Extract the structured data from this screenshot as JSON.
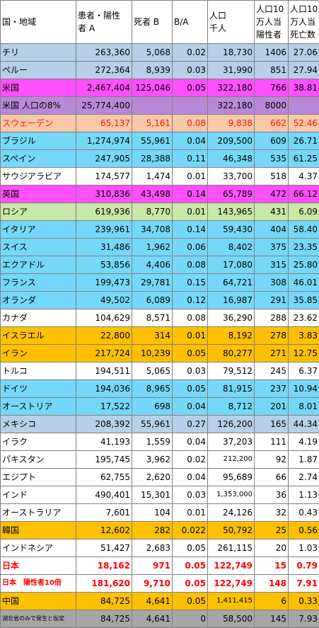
{
  "headers": {
    "country": "国・地域",
    "patients": [
      "患者・陽性",
      "者 A"
    ],
    "deaths": "死者 B",
    "ratio": "B/A",
    "population": [
      "人口",
      "千人"
    ],
    "per100k_pos": [
      "人口10",
      "万人当",
      "陽性者"
    ],
    "per100k_death": [
      "人口10",
      "万人当",
      "死亡数"
    ]
  },
  "rows": [
    {
      "name": "チリ",
      "a": "263,360",
      "b": "5,068",
      "ratio": "0.02",
      "pop": "18,730",
      "pos": "1406",
      "death": "27.06"
    },
    {
      "name": "ペルー",
      "a": "272,364",
      "b": "8,939",
      "ratio": "0.03",
      "pop": "31,990",
      "pos": "851",
      "death": "27.94"
    },
    {
      "name": "米国",
      "a": "2,467,404",
      "b": "125,046",
      "ratio": "0.05",
      "pop": "322,180",
      "pos": "766",
      "death": "38.81"
    },
    {
      "name": "米国 人口の8%",
      "a": "25,774,400",
      "b": "",
      "ratio": "",
      "pop": "322,180",
      "pos": "8000",
      "death": ""
    },
    {
      "name": "スウェーデン",
      "a": "65,137",
      "b": "5,161",
      "ratio": "0.08",
      "pop": "9,838",
      "pos": "662",
      "death": "52.46"
    },
    {
      "name": "ブラジル",
      "a": "1,274,974",
      "b": "55,961",
      "ratio": "0.04",
      "pop": "209,500",
      "pos": "609",
      "death": "26.71"
    },
    {
      "name": "スペイン",
      "a": "247,905",
      "b": "28,388",
      "ratio": "0.11",
      "pop": "46,348",
      "pos": "535",
      "death": "61.25"
    },
    {
      "name": "サウジアラビア",
      "a": "174,577",
      "b": "1,474",
      "ratio": "0.01",
      "pop": "33,700",
      "pos": "518",
      "death": "4.37"
    },
    {
      "name": "英国",
      "a": "310,836",
      "b": "43,498",
      "ratio": "0.14",
      "pop": "65,789",
      "pos": "472",
      "death": "66.12"
    },
    {
      "name": "ロシア",
      "a": "619,936",
      "b": "8,770",
      "ratio": "0.01",
      "pop": "143,965",
      "pos": "431",
      "death": "6.09"
    },
    {
      "name": "イタリア",
      "a": "239,961",
      "b": "34,708",
      "ratio": "0.14",
      "pop": "59,430",
      "pos": "404",
      "death": "58.40"
    },
    {
      "name": "スイス",
      "a": "31,486",
      "b": "1,962",
      "ratio": "0.06",
      "pop": "8,402",
      "pos": "375",
      "death": "23.35"
    },
    {
      "name": "エクアドル",
      "a": "53,856",
      "b": "4,406",
      "ratio": "0.08",
      "pop": "17,080",
      "pos": "315",
      "death": "25.80"
    },
    {
      "name": "フランス",
      "a": "199,473",
      "b": "29,781",
      "ratio": "0.15",
      "pop": "64,721",
      "pos": "308",
      "death": "46.01"
    },
    {
      "name": "オランダ",
      "a": "49,502",
      "b": "6,089",
      "ratio": "0.12",
      "pop": "16,987",
      "pos": "291",
      "death": "35.85"
    },
    {
      "name": "カナダ",
      "a": "104,629",
      "b": "8,571",
      "ratio": "0.08",
      "pop": "36,290",
      "pos": "288",
      "death": "23.62"
    },
    {
      "name": "イスラエル",
      "a": "22,800",
      "b": "314",
      "ratio": "0.01",
      "pop": "8,192",
      "pos": "278",
      "death": "3.83"
    },
    {
      "name": "イラン",
      "a": "217,724",
      "b": "10,239",
      "ratio": "0.05",
      "pop": "80,277",
      "pos": "271",
      "death": "12.75"
    },
    {
      "name": "トルコ",
      "a": "194,511",
      "b": "5,065",
      "ratio": "0.03",
      "pop": "79,512",
      "pos": "245",
      "death": "6.37"
    },
    {
      "name": "ドイツ",
      "a": "194,036",
      "b": "8,965",
      "ratio": "0.05",
      "pop": "81,915",
      "pos": "237",
      "death": "10.94"
    },
    {
      "name": "オーストリア",
      "a": "17,522",
      "b": "698",
      "ratio": "0.04",
      "pop": "8,712",
      "pos": "201",
      "death": "8.01"
    },
    {
      "name": "メキシコ",
      "a": "208,392",
      "b": "55,961",
      "ratio": "0.27",
      "pop": "126,200",
      "pos": "165",
      "death": "44.34"
    },
    {
      "name": "イラク",
      "a": "41,193",
      "b": "1,559",
      "ratio": "0.04",
      "pop": "37,203",
      "pos": "111",
      "death": "4.19"
    },
    {
      "name": "パキスタン",
      "a": "195,745",
      "b": "3,962",
      "ratio": "0.02",
      "pop": "212,200",
      "pos": "92",
      "death": "1.87"
    },
    {
      "name": "エジプト",
      "a": "62,755",
      "b": "2,620",
      "ratio": "0.04",
      "pop": "95,689",
      "pos": "66",
      "death": "2.74"
    },
    {
      "name": "インド",
      "a": "490,401",
      "b": "15,301",
      "ratio": "0.03",
      "pop": "1,353,000",
      "pos": "36",
      "death": "1.13"
    },
    {
      "name": "オーストラリア",
      "a": "7,601",
      "b": "104",
      "ratio": "0.01",
      "pop": "24,126",
      "pos": "32",
      "death": "0.43"
    },
    {
      "name": "韓国",
      "a": "12,602",
      "b": "282",
      "ratio": "0.022",
      "pop": "50,792",
      "pos": "25",
      "death": "0.56"
    },
    {
      "name": "インドネシア",
      "a": "51,427",
      "b": "2,683",
      "ratio": "0.05",
      "pop": "261,115",
      "pos": "20",
      "death": "1.03"
    },
    {
      "name": "日本",
      "a": "18,162",
      "b": "971",
      "ratio": "0.05",
      "pop": "122,749",
      "pos": "15",
      "death": "0.79"
    },
    {
      "name": "日本　陽性者10倍",
      "a": "181,620",
      "b": "9,710",
      "ratio": "0.05",
      "pop": "122,749",
      "pos": "148",
      "death": "7.91"
    },
    {
      "name": "中国",
      "a": "84,725",
      "b": "4,641",
      "ratio": "0.05",
      "pop": "1,411,415",
      "pos": "6",
      "death": "0.33"
    },
    {
      "name": "湖北省のみで発生と仮定",
      "a": "84,725",
      "b": "4,641",
      "ratio": "0",
      "pop": "58,500",
      "pos": "145",
      "death": "7.93"
    }
  ],
  "colors": {
    "blue": "#75d8f8",
    "steel": "#b7cfe8",
    "magenta": "#ff4fff",
    "purple": "#b78ad8",
    "peach": "#f8c8a8",
    "green": "#c8e8a8",
    "gold": "#ffc000",
    "gray": "#a6a6a6",
    "red_text": "#ff0000"
  }
}
